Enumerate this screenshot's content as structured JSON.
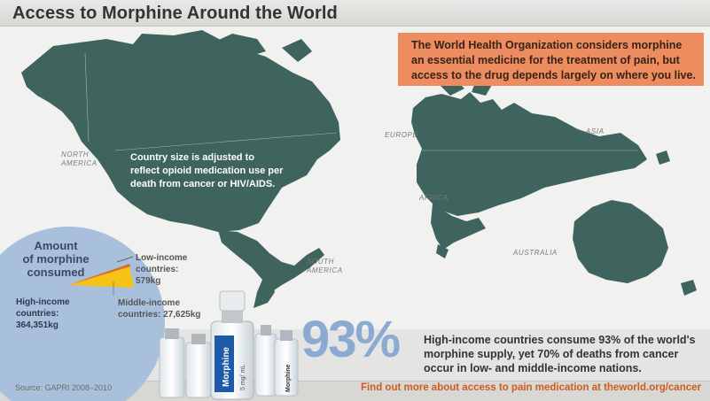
{
  "header": {
    "title": "Access to Morphine Around the World"
  },
  "info_box": {
    "lines": [
      "The World Health Organization considers morphine",
      "an essential medicine for the treatment of pain, but",
      "access to the drug depends largely on where you live."
    ]
  },
  "map": {
    "note_lines": [
      "Country size is adjusted to",
      "reflect opioid medication use per",
      "death from cancer or HIV/AIDS."
    ],
    "regions": {
      "north_america": [
        "NORTH",
        "AMERICA"
      ],
      "europe": "EUROPE",
      "asia": "ASIA",
      "africa": "AFRICA",
      "south_america": [
        "SOUTH",
        "AMERICA"
      ],
      "australia": "AUSTRALIA"
    },
    "colors": {
      "landmass": "#3f635d",
      "ocean": "#f1f1ef",
      "callout_box": "#ec8c5f"
    }
  },
  "pie": {
    "title_lines": [
      "Amount",
      "of morphine",
      "consumed"
    ],
    "high_income": [
      "High-income",
      "countries:",
      "364,351kg"
    ],
    "low_income": [
      "Low-income",
      "countries:",
      "579kg"
    ],
    "middle_income": [
      "Middle-income",
      "countries: 27,625kg"
    ],
    "colors": {
      "high": "#a8c0dc",
      "middle": "#f6c218",
      "low": "#d96a30"
    }
  },
  "bottles": {
    "label_main": "Morphine",
    "label_small": "5 mg/ mL"
  },
  "stat": {
    "percent": "93%",
    "lines": [
      "High-income countries consume 93% of the world's",
      "morphine supply, yet 70% of deaths from cancer",
      "occur in low- and middle-income nations."
    ]
  },
  "footer": {
    "source": "Source: GAPRI 2008–2010",
    "link_text": "Find out more about access to pain medication at theworld.org/cancer"
  }
}
